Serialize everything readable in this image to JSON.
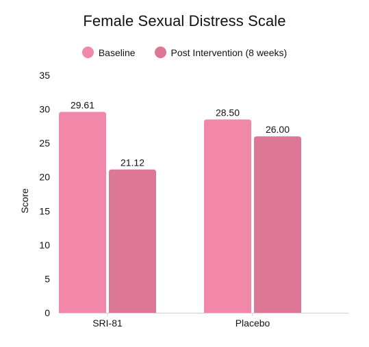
{
  "chart_data": {
    "type": "bar",
    "title": "Female Sexual Distress Scale",
    "xlabel": "",
    "ylabel": "Score",
    "ylim": [
      0,
      35
    ],
    "yticks": [
      0,
      5,
      10,
      15,
      20,
      25,
      30,
      35
    ],
    "categories": [
      "SRI-81",
      "Placebo"
    ],
    "series": [
      {
        "name": "Baseline",
        "color": "#F288A9",
        "values": [
          29.61,
          28.5
        ],
        "labels": [
          "29.61",
          "28.50"
        ]
      },
      {
        "name": "Post Intervention (8 weeks)",
        "color": "#DC7795",
        "values": [
          21.12,
          26.0
        ],
        "labels": [
          "21.12",
          "26.00"
        ]
      }
    ],
    "legend_position": "top-center",
    "grid": false
  }
}
